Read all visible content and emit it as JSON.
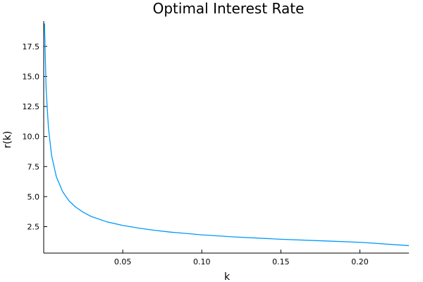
{
  "chart_data": {
    "type": "line",
    "title": "Optimal Interest Rate",
    "xlabel": "k",
    "ylabel": "r(k)",
    "xlim": [
      0.0,
      0.231
    ],
    "ylim": [
      0.3,
      19.6
    ],
    "x_ticks": [
      0.05,
      0.1,
      0.15,
      0.2
    ],
    "x_tick_labels": [
      "0.05",
      "0.10",
      "0.15",
      "0.20"
    ],
    "y_ticks": [
      2.5,
      5.0,
      7.5,
      10.0,
      12.5,
      15.0,
      17.5
    ],
    "y_tick_labels": [
      "2.5",
      "5.0",
      "7.5",
      "10.0",
      "12.5",
      "15.0",
      "17.5"
    ],
    "grid": false,
    "legend": "none",
    "series": [
      {
        "color": "#009af9",
        "x": [
          0.0005,
          0.0015,
          0.003,
          0.005,
          0.008,
          0.012,
          0.016,
          0.02,
          0.025,
          0.03,
          0.04,
          0.05,
          0.06,
          0.07,
          0.08,
          0.1,
          0.12,
          0.15,
          0.18,
          0.2,
          0.231
        ],
        "y": [
          19.4,
          14.0,
          10.7,
          8.4,
          6.65,
          5.4,
          4.65,
          4.15,
          3.7,
          3.35,
          2.9,
          2.6,
          2.38,
          2.2,
          2.05,
          1.82,
          1.65,
          1.45,
          1.3,
          1.2,
          0.92
        ]
      }
    ]
  }
}
